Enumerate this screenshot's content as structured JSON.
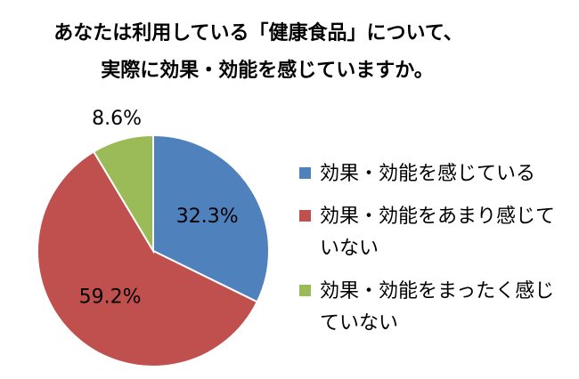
{
  "chart_data": {
    "type": "pie",
    "title": [
      "あなたは利用している「健康食品」について、",
      "実際に効果・効能を感じていますか。"
    ],
    "categories": [
      "効果・効能を感じている",
      "効果・効能をあまり感じていない",
      "効果・効能をまったく感じていない"
    ],
    "values": [
      32.3,
      59.2,
      8.6
    ],
    "value_labels": [
      "32.3%",
      "59.2%",
      "8.6%"
    ],
    "colors": [
      "#4f81bd",
      "#c0504d",
      "#9bbb59"
    ],
    "legend": "right"
  }
}
